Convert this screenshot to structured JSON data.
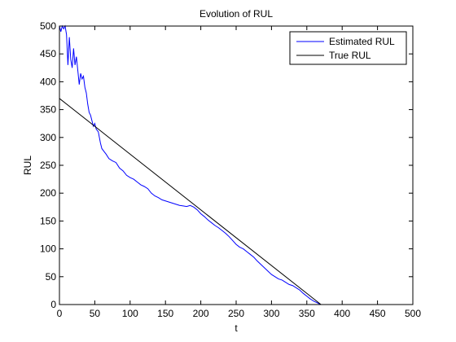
{
  "chart_data": {
    "type": "line",
    "title": "Evolution of RUL",
    "xlabel": "t",
    "ylabel": "RUL",
    "xlim": [
      0,
      500
    ],
    "ylim": [
      0,
      500
    ],
    "xticks": [
      0,
      50,
      100,
      150,
      200,
      250,
      300,
      350,
      400,
      450,
      500
    ],
    "yticks": [
      0,
      50,
      100,
      150,
      200,
      250,
      300,
      350,
      400,
      450,
      500
    ],
    "grid": false,
    "legend_position": "top-right",
    "series": [
      {
        "name": "Estimated RUL",
        "color": "#0000ff",
        "x": [
          0,
          2,
          4,
          6,
          8,
          10,
          12,
          14,
          16,
          18,
          20,
          22,
          24,
          26,
          28,
          30,
          32,
          34,
          36,
          38,
          40,
          42,
          44,
          46,
          48,
          50,
          52,
          55,
          58,
          60,
          63,
          66,
          70,
          75,
          80,
          85,
          90,
          95,
          100,
          105,
          110,
          115,
          120,
          125,
          130,
          135,
          140,
          145,
          150,
          155,
          160,
          165,
          170,
          175,
          180,
          185,
          190,
          195,
          200,
          205,
          210,
          215,
          220,
          225,
          230,
          235,
          240,
          245,
          250,
          255,
          260,
          265,
          270,
          275,
          280,
          285,
          290,
          295,
          300,
          305,
          310,
          315,
          320,
          325,
          330,
          335,
          340,
          345,
          350,
          355,
          360,
          365,
          368,
          370
        ],
        "y": [
          500,
          490,
          500,
          495,
          500,
          485,
          430,
          480,
          440,
          425,
          460,
          430,
          445,
          420,
          395,
          415,
          405,
          410,
          390,
          380,
          360,
          345,
          340,
          330,
          320,
          325,
          315,
          310,
          290,
          280,
          275,
          270,
          262,
          258,
          255,
          245,
          240,
          232,
          228,
          225,
          220,
          215,
          212,
          208,
          200,
          195,
          192,
          188,
          186,
          184,
          182,
          180,
          178,
          177,
          176,
          178,
          175,
          170,
          163,
          158,
          152,
          147,
          142,
          138,
          133,
          128,
          122,
          115,
          108,
          103,
          100,
          95,
          90,
          85,
          78,
          72,
          66,
          60,
          54,
          50,
          46,
          44,
          40,
          36,
          34,
          30,
          26,
          20,
          15,
          10,
          6,
          3,
          1,
          0
        ]
      },
      {
        "name": "True RUL",
        "color": "#000000",
        "x": [
          0,
          370
        ],
        "y": [
          370,
          0
        ]
      }
    ]
  }
}
